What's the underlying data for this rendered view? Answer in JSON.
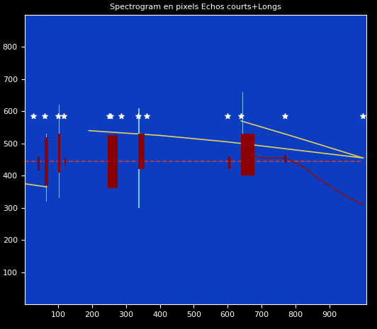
{
  "chart_data": {
    "type": "spectrogram",
    "title": "Spectrogram en pixels Echos courts+Longs",
    "xlim": [
      0,
      1010
    ],
    "ylim": [
      0,
      900
    ],
    "xticks": [
      100,
      200,
      300,
      400,
      500,
      600,
      700,
      800,
      900
    ],
    "yticks": [
      100,
      200,
      300,
      400,
      500,
      600,
      700,
      800
    ],
    "grid": false,
    "series": [
      {
        "type": "line",
        "color": "#c04040",
        "line_style": "dashed",
        "x": [
          0,
          1000
        ],
        "values": [
          445,
          445
        ]
      },
      {
        "type": "line",
        "color": "#e0d060",
        "line_style": "solid",
        "x": [
          0,
          65
        ],
        "values": [
          375,
          365
        ]
      },
      {
        "type": "line",
        "color": "#e0d060",
        "line_style": "solid",
        "x": [
          190,
          400,
          600,
          800,
          1000
        ],
        "values": [
          540,
          525,
          505,
          480,
          455
        ]
      },
      {
        "type": "line",
        "color": "#e0d060",
        "line_style": "solid",
        "x": [
          640,
          800,
          1000
        ],
        "values": [
          570,
          520,
          455
        ]
      },
      {
        "type": "line",
        "color": "#8b1010",
        "line_style": "solid",
        "x": [
          640,
          700,
          770,
          820,
          870,
          920,
          960,
          1000
        ],
        "values": [
          470,
          455,
          455,
          430,
          390,
          355,
          330,
          310
        ]
      },
      {
        "type": "bar",
        "color": "#80c8ff",
        "x": [
          65,
          102,
          338,
          645
        ],
        "low": [
          320,
          330,
          300,
          420
        ],
        "high": [
          530,
          620,
          610,
          660
        ],
        "width": 3
      },
      {
        "type": "bar",
        "color": "#8b0000",
        "x": [
          42,
          65,
          102,
          120,
          260,
          345,
          605,
          660,
          770
        ],
        "low": [
          415,
          370,
          410,
          430,
          360,
          420,
          420,
          400,
          440
        ],
        "high": [
          460,
          520,
          530,
          455,
          525,
          530,
          460,
          530,
          465
        ],
        "width": [
          6,
          10,
          6,
          4,
          30,
          20,
          5,
          40,
          6
        ]
      },
      {
        "type": "scatter",
        "color": "#ffffff",
        "marker": "star",
        "x": [
          25,
          60,
          100,
          115,
          250,
          255,
          285,
          335,
          360,
          600,
          640,
          770,
          1000
        ],
        "values": [
          585,
          585,
          585,
          585,
          585,
          585,
          585,
          585,
          585,
          585,
          585,
          585,
          585
        ]
      }
    ]
  }
}
